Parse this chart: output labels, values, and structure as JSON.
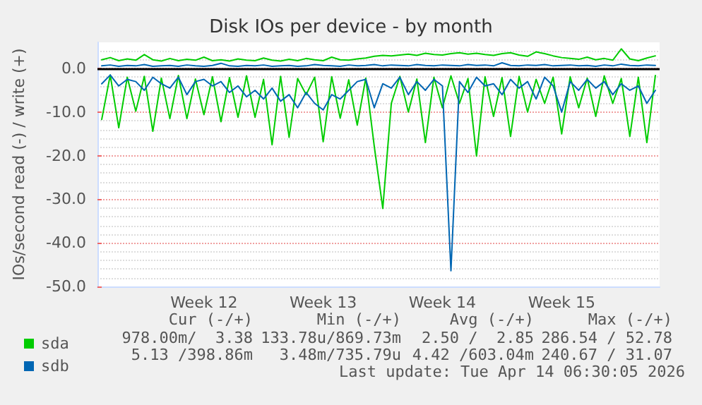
{
  "chart_data": {
    "type": "line",
    "title": "Disk IOs per device - by month",
    "ylabel": "IOs/second read (-) / write (+)",
    "categories": [
      null,
      null,
      null,
      null,
      null,
      null,
      null,
      null,
      null,
      null,
      null,
      null,
      "Week 12",
      null,
      null,
      null,
      null,
      null,
      null,
      null,
      null,
      null,
      null,
      null,
      null,
      null,
      "Week 13",
      null,
      null,
      null,
      null,
      null,
      null,
      null,
      null,
      null,
      null,
      null,
      null,
      null,
      "Week 14",
      null,
      null,
      null,
      null,
      null,
      null,
      null,
      null,
      null,
      null,
      null,
      null,
      null,
      "Week 15",
      null,
      null,
      null,
      null,
      null,
      null,
      null,
      null,
      null,
      null,
      null
    ],
    "series": [
      {
        "name": "sda",
        "color": "#00cc00",
        "values": [
          2.0,
          2.5,
          1.8,
          2.2,
          1.9,
          3.2,
          2.0,
          1.7,
          2.3,
          1.8,
          2.1,
          1.9,
          2.6,
          1.8,
          2.0,
          1.7,
          2.2,
          1.9,
          1.8,
          2.4,
          1.9,
          1.7,
          2.1,
          1.8,
          2.3,
          2.0,
          1.8,
          2.6,
          2.0,
          1.9,
          2.2,
          2.4,
          2.8,
          3.0,
          2.9,
          3.1,
          3.3,
          3.0,
          3.5,
          3.2,
          3.1,
          3.4,
          3.6,
          3.3,
          3.5,
          3.2,
          3.0,
          3.4,
          3.6,
          3.1,
          2.8,
          3.8,
          3.4,
          2.9,
          2.5,
          2.3,
          2.1,
          2.6,
          2.0,
          2.3,
          1.9,
          4.5,
          2.2,
          1.8,
          2.4,
          2.9
        ]
      },
      {
        "color": "#00cc00",
        "values": [
          -11.7,
          -1.5,
          -13.6,
          -2.0,
          -9.8,
          -1.8,
          -14.4,
          -2.2,
          -11.5,
          -1.6,
          -11.5,
          -2.4,
          -10.6,
          -1.9,
          -12.2,
          -2.1,
          -11.2,
          -1.7,
          -11.2,
          -2.5,
          -17.5,
          -1.8,
          -15.8,
          -2.3,
          -6.0,
          -2.0,
          -16.8,
          -1.9,
          -11.4,
          -2.6,
          -13.0,
          -2.2,
          -17.9,
          -32.1,
          -8.0,
          -1.8,
          -10.0,
          -2.4,
          -17.0,
          -2.0,
          -9.0,
          -1.7,
          -8.0,
          -2.3,
          -20.1,
          -1.9,
          -11.0,
          -2.1,
          -15.6,
          -1.8,
          -10.0,
          -2.5,
          -8.0,
          -2.0,
          -15.0,
          -1.9,
          -9.0,
          -2.2,
          -11.0,
          -1.7,
          -8.0,
          -2.3,
          -15.6,
          -2.0,
          -17.0,
          -1.6
        ]
      },
      {
        "name": "sdb",
        "color": "#0066b3",
        "values": [
          0.6,
          0.8,
          0.5,
          0.7,
          0.6,
          0.9,
          0.5,
          0.6,
          0.7,
          0.5,
          0.8,
          0.6,
          0.5,
          0.7,
          1.2,
          0.6,
          0.5,
          0.7,
          0.6,
          0.8,
          0.5,
          0.6,
          0.7,
          0.5,
          0.6,
          0.9,
          0.7,
          0.6,
          0.5,
          0.8,
          0.6,
          0.7,
          0.9,
          0.6,
          0.8,
          0.7,
          0.6,
          0.9,
          0.7,
          0.6,
          0.8,
          0.7,
          0.6,
          0.9,
          0.7,
          0.8,
          0.6,
          1.3,
          0.7,
          0.6,
          0.8,
          0.7,
          0.9,
          0.6,
          0.7,
          0.8,
          0.6,
          0.7,
          0.5,
          0.8,
          0.6,
          1.0,
          0.7,
          0.6,
          0.8,
          0.7
        ]
      },
      {
        "color": "#0066b3",
        "values": [
          -3.5,
          -1.5,
          -4.0,
          -2.5,
          -3.0,
          -5.0,
          -2.0,
          -3.5,
          -4.5,
          -2.0,
          -6.0,
          -3.0,
          -2.5,
          -4.0,
          -3.0,
          -5.5,
          -4.0,
          -6.5,
          -5.0,
          -7.0,
          -4.5,
          -7.5,
          -6.0,
          -9.0,
          -5.5,
          -8.0,
          -9.5,
          -6.0,
          -7.0,
          -5.0,
          -3.0,
          -2.5,
          -9.0,
          -3.5,
          -4.5,
          -2.0,
          -6.0,
          -3.0,
          -5.0,
          -2.5,
          -4.0,
          -46.4,
          -3.0,
          -5.5,
          -2.0,
          -4.0,
          -3.5,
          -6.0,
          -2.5,
          -4.5,
          -3.0,
          -7.0,
          -2.0,
          -4.0,
          -10.0,
          -3.0,
          -5.0,
          -2.5,
          -4.5,
          -3.0,
          -6.0,
          -3.5,
          -5.0,
          -4.0,
          -8.0,
          -5.0
        ]
      }
    ],
    "ylim": [
      -50,
      6
    ],
    "yticks": [
      {
        "value": -50,
        "label": "-50.0"
      },
      {
        "value": -40,
        "label": "-40.0"
      },
      {
        "value": -30,
        "label": "-30.0"
      },
      {
        "value": -20,
        "label": "-20.0"
      },
      {
        "value": -10,
        "label": "-10.0"
      },
      {
        "value": 0,
        "label": "0.0"
      }
    ],
    "ref_lines": [
      {
        "axis": "y",
        "value": 0,
        "color": "#000000"
      }
    ],
    "grid": "y",
    "legend": "bottom left",
    "marker": "none",
    "line_style": "solid",
    "annotations": [
      "Cur (-/+)",
      "Min (-/+)",
      "Avg (-/+)",
      "Max (-/+)",
      "978.00m/  3.38",
      "133.78u/869.73m",
      "2.50 /  2.85",
      "286.54 / 52.78",
      "5.13 /398.86m",
      "3.48m/735.79u",
      "4.42 /603.04m",
      "240.67 / 31.07",
      "Last update: Tue Apr 14 06:30:05 2026"
    ]
  }
}
